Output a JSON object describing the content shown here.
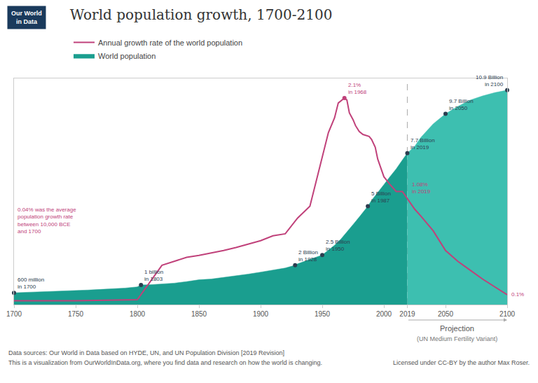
{
  "chart_data": {
    "type": "area",
    "title": "World population growth, 1700-2100",
    "xlim": [
      1700,
      2100
    ],
    "xticks": [
      1700,
      1750,
      1800,
      1850,
      1900,
      1950,
      2000,
      2019,
      2050,
      2100
    ],
    "ylim": [
      0,
      11.5
    ],
    "y2lim": [
      0,
      2.3
    ],
    "grid": false,
    "tick_labels": "x",
    "legend": "top left",
    "series": [
      {
        "name": "World population",
        "type": "area",
        "color": "#1A9E8F",
        "x": [
          1700,
          1710,
          1720,
          1730,
          1740,
          1750,
          1760,
          1770,
          1780,
          1790,
          1800,
          1803,
          1810,
          1820,
          1830,
          1840,
          1850,
          1860,
          1870,
          1880,
          1890,
          1900,
          1910,
          1920,
          1928,
          1930,
          1940,
          1950,
          1955,
          1960,
          1965,
          1970,
          1975,
          1980,
          1985,
          1987,
          1990,
          1995,
          2000,
          2005,
          2010,
          2015,
          2019,
          2025,
          2030,
          2040,
          2050,
          2060,
          2070,
          2080,
          2090,
          2100
        ],
        "values": [
          0.6,
          0.62,
          0.64,
          0.66,
          0.69,
          0.72,
          0.74,
          0.77,
          0.8,
          0.84,
          0.9,
          1.0,
          1.01,
          1.04,
          1.09,
          1.17,
          1.26,
          1.3,
          1.38,
          1.47,
          1.55,
          1.65,
          1.75,
          1.86,
          2.0,
          2.07,
          2.3,
          2.52,
          2.77,
          3.02,
          3.32,
          3.68,
          4.07,
          4.45,
          4.82,
          5.0,
          5.3,
          5.72,
          6.1,
          6.51,
          6.9,
          7.35,
          7.7,
          8.05,
          8.5,
          9.19,
          9.7,
          10.08,
          10.4,
          10.61,
          10.78,
          10.9
        ],
        "projection": {
          "from": 2019,
          "color": "#3DBFB0"
        }
      },
      {
        "name": "Annual growth rate of the world population",
        "type": "line",
        "color": "#C0417A",
        "axis": "y2",
        "x": [
          1700,
          1720,
          1750,
          1800,
          1820,
          1840,
          1850,
          1870,
          1880,
          1900,
          1910,
          1920,
          1930,
          1940,
          1950,
          1955,
          1960,
          1963,
          1968,
          1970,
          1972,
          1975,
          1977,
          1980,
          1983,
          1985,
          1988,
          1990,
          1993,
          1995,
          2000,
          2005,
          2010,
          2015,
          2019,
          2025,
          2030,
          2040,
          2050,
          2060,
          2070,
          2080,
          2090,
          2100
        ],
        "values": [
          0.04,
          0.04,
          0.04,
          0.05,
          0.4,
          0.48,
          0.5,
          0.55,
          0.58,
          0.65,
          0.7,
          0.72,
          0.88,
          1.0,
          1.5,
          1.75,
          1.9,
          2.05,
          2.1,
          2.08,
          1.95,
          1.88,
          1.82,
          1.76,
          1.73,
          1.72,
          1.71,
          1.68,
          1.6,
          1.48,
          1.3,
          1.22,
          1.15,
          1.15,
          1.08,
          0.97,
          0.9,
          0.75,
          0.55,
          0.44,
          0.35,
          0.26,
          0.18,
          0.1
        ]
      }
    ],
    "annotations": [
      {
        "x": 1700,
        "y": 0.6,
        "text": "600 million\nin 1700",
        "marker": "circle",
        "color": "#2c3e50"
      },
      {
        "x": 1803,
        "y": 1.0,
        "text": "1 billion\nin 1803",
        "marker": "circle",
        "color": "#2c3e50"
      },
      {
        "x": 1928,
        "y": 2.0,
        "text": "2 Billion\nin 1928",
        "marker": "circle",
        "color": "#2c3e50"
      },
      {
        "x": 1950,
        "y": 2.52,
        "text": "2.5 Billion\nin 1950",
        "marker": "circle",
        "color": "#2c3e50"
      },
      {
        "x": 1987,
        "y": 5.0,
        "text": "5 Billion\nin 1987",
        "marker": "circle",
        "color": "#2c3e50"
      },
      {
        "x": 2019,
        "y": 7.7,
        "text": "7.7 Billion\nin 2019",
        "marker": "circle",
        "color": "#2c3e50"
      },
      {
        "x": 2050,
        "y": 9.7,
        "text": "9.7 Billion\nin 2050",
        "marker": "circle",
        "color": "#2c3e50"
      },
      {
        "x": 2100,
        "y": 10.9,
        "text": "10.9 Billion\nin 2100",
        "marker": "circle",
        "color": "#2c3e50"
      },
      {
        "x": 1968,
        "y": 2.1,
        "text": "2.1%\nin 1968",
        "axis": "y2",
        "marker": "circle",
        "color": "#C0417A"
      },
      {
        "x": 2019,
        "y": 1.08,
        "text": "1.08%\nin 2019",
        "axis": "y2",
        "color": "#C0417A"
      },
      {
        "x": 2100,
        "y": 0.1,
        "text": "0.1%",
        "axis": "y2",
        "color": "#C0417A"
      },
      {
        "text": "0.04% was the average\npopulation growth rate\nbetween 10,000 BCE\nand 1700",
        "color": "#C0417A"
      }
    ],
    "projection_label": [
      "Projection",
      "(UN Medium Fertility Variant)"
    ],
    "logo": "Our World\nin Data",
    "logo_color": "#1a3a5c",
    "footer": [
      "Data sources: Our World in Data based on HYDE, UN, and UN Population Division [2019 Revision]",
      "This is a visualization from OurWorldInData.org, where you find data and research on how the world is changing.",
      "Licensed under CC-BY by the author Max Roser."
    ]
  }
}
